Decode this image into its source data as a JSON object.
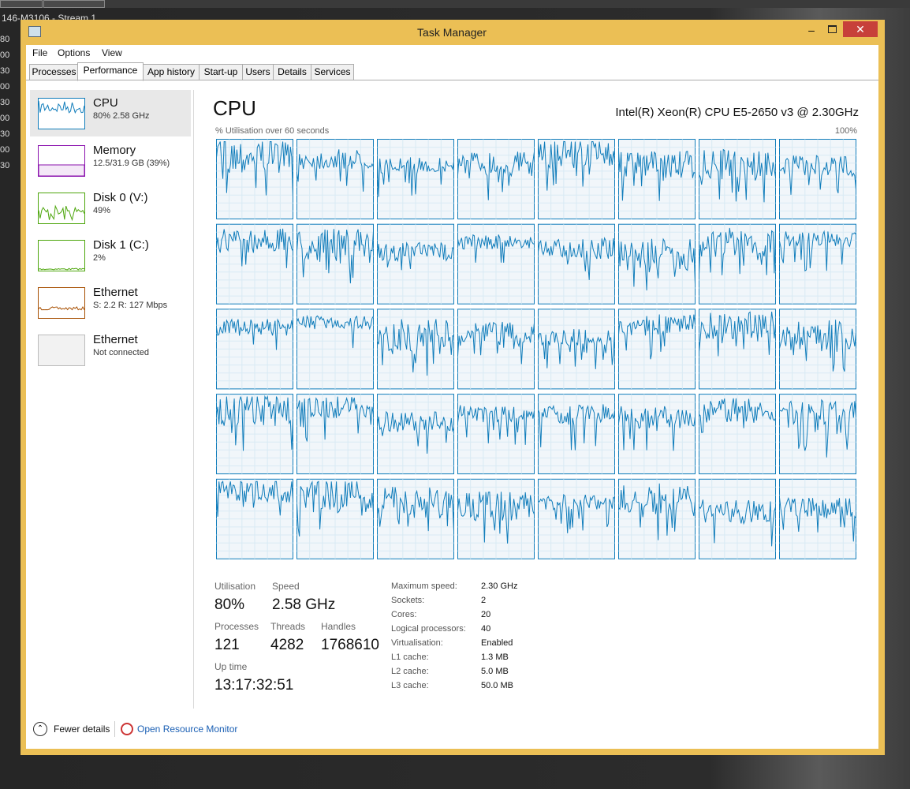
{
  "background": {
    "caption": "146-M3106 - Stream 1",
    "side_numbers": [
      "80",
      "00",
      "30",
      "00",
      "30",
      "00",
      "30",
      "00",
      "30"
    ]
  },
  "window": {
    "title": "Task Manager"
  },
  "menu": [
    "File",
    "Options",
    "View"
  ],
  "tabs": [
    "Processes",
    "Performance",
    "App history",
    "Start-up",
    "Users",
    "Details",
    "Services"
  ],
  "sidebar": [
    {
      "label": "CPU",
      "detail": "80% 2.58 GHz"
    },
    {
      "label": "Memory",
      "detail": "12.5/31.9 GB (39%)"
    },
    {
      "label": "Disk 0 (V:)",
      "detail": "49%"
    },
    {
      "label": "Disk 1 (C:)",
      "detail": "2%"
    },
    {
      "label": "Ethernet",
      "detail": "S: 2.2 R: 127 Mbps"
    },
    {
      "label": "Ethernet",
      "detail": "Not connected"
    }
  ],
  "main": {
    "title": "CPU",
    "cpu_name": "Intel(R) Xeon(R) CPU E5-2650 v3 @ 2.30GHz",
    "graph_label": "% Utilisation over 60 seconds",
    "graph_max": "100%",
    "stats": [
      {
        "label": "Utilisation",
        "value": "80%"
      },
      {
        "label": "Speed",
        "value": "2.58 GHz"
      },
      {
        "label": "Processes",
        "value": "121"
      },
      {
        "label": "Threads",
        "value": "4282"
      },
      {
        "label": "Handles",
        "value": "1768610"
      },
      {
        "label": "Up time",
        "value": "13:17:32:51"
      }
    ],
    "specs": [
      [
        "Maximum speed:",
        "2.30 GHz"
      ],
      [
        "Sockets:",
        "2"
      ],
      [
        "Cores:",
        "20"
      ],
      [
        "Logical processors:",
        "40"
      ],
      [
        "Virtualisation:",
        "Enabled"
      ],
      [
        "L1 cache:",
        "1.3 MB"
      ],
      [
        "L2 cache:",
        "5.0 MB"
      ],
      [
        "L3 cache:",
        "50.0 MB"
      ]
    ]
  },
  "footer": {
    "fewer_details": "Fewer details",
    "resource_monitor": "Open Resource Monitor"
  }
}
